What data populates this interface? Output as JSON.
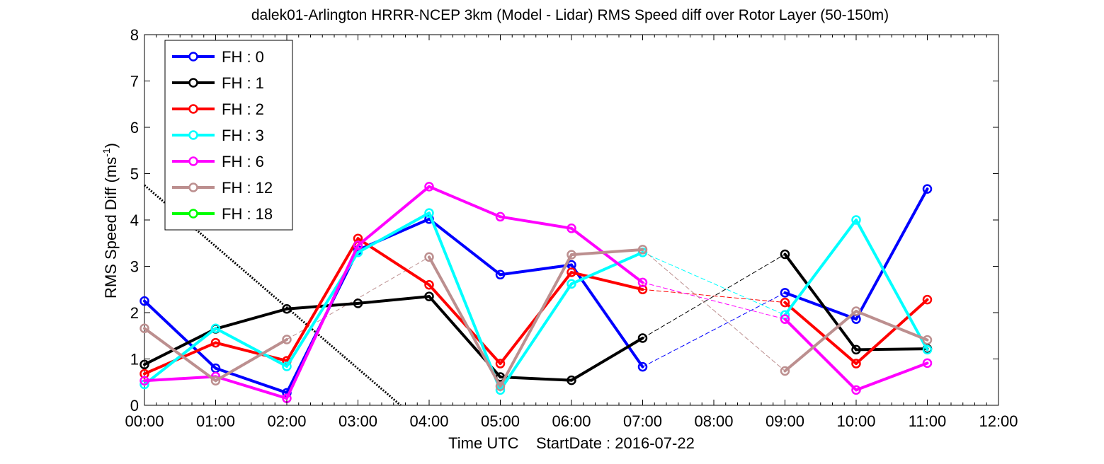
{
  "chart_data": {
    "type": "line",
    "title": "dalek01-Arlington HRRR-NCEP 3km (Model - Lidar) RMS Speed diff over Rotor Layer (50-150m)",
    "xlabel": "Time UTC    StartDate : 2016-07-22",
    "ylabel_main": "RMS Speed Diff (ms",
    "ylabel_sup": "-1",
    "ylabel_close": ")",
    "xlim": [
      0,
      12
    ],
    "ylim": [
      0,
      8
    ],
    "x_tick_values": [
      0,
      1,
      2,
      3,
      4,
      5,
      6,
      7,
      8,
      9,
      10,
      11,
      12
    ],
    "x_tick_labels": [
      "00:00",
      "01:00",
      "02:00",
      "03:00",
      "04:00",
      "05:00",
      "06:00",
      "07:00",
      "08:00",
      "09:00",
      "10:00",
      "11:00",
      "12:00"
    ],
    "y_tick_values": [
      0,
      1,
      2,
      3,
      4,
      5,
      6,
      7,
      8
    ],
    "y_tick_labels": [
      "0",
      "1",
      "2",
      "3",
      "4",
      "5",
      "6",
      "7",
      "8"
    ],
    "grid": false,
    "legend_position": "top-left",
    "gap_at_hour": 8,
    "series": [
      {
        "name": "FH : 0",
        "color": "#0000ff",
        "x": [
          0,
          1,
          2,
          3,
          4,
          5,
          6,
          7,
          9,
          10,
          11
        ],
        "y": [
          2.25,
          0.8,
          0.27,
          3.35,
          4.02,
          2.82,
          3.03,
          0.83,
          2.43,
          1.86,
          4.67
        ]
      },
      {
        "name": "FH : 1",
        "color": "#000000",
        "x": [
          0,
          1,
          2,
          3,
          4,
          5,
          6,
          7,
          9,
          10,
          11
        ],
        "y": [
          0.88,
          1.65,
          2.08,
          2.2,
          2.35,
          0.61,
          0.54,
          1.45,
          3.26,
          1.2,
          1.22
        ]
      },
      {
        "name": "FH : 2",
        "color": "#ff0000",
        "x": [
          0,
          1,
          2,
          3,
          4,
          5,
          6,
          7,
          9,
          10,
          11
        ],
        "y": [
          0.68,
          1.35,
          0.96,
          3.6,
          2.6,
          0.9,
          2.87,
          2.5,
          2.22,
          0.9,
          2.28
        ]
      },
      {
        "name": "FH : 3",
        "color": "#00ffff",
        "x": [
          0,
          1,
          2,
          3,
          4,
          5,
          6,
          7,
          9,
          10,
          11
        ],
        "y": [
          0.45,
          1.66,
          0.84,
          3.3,
          4.15,
          0.33,
          2.62,
          3.3,
          1.95,
          4.0,
          1.2
        ]
      },
      {
        "name": "FH : 6",
        "color": "#ff00ff",
        "x": [
          0,
          1,
          2,
          3,
          4,
          5,
          6,
          7,
          9,
          10,
          11
        ],
        "y": [
          0.53,
          0.62,
          0.15,
          3.45,
          4.72,
          4.07,
          3.82,
          2.65,
          1.86,
          0.33,
          0.91
        ]
      },
      {
        "name": "FH : 12",
        "color": "#bc8f8f",
        "x": [
          0,
          1,
          2,
          3,
          4,
          5,
          6,
          7,
          9,
          10,
          11
        ],
        "y": [
          1.66,
          0.53,
          1.42,
          null,
          3.2,
          0.41,
          3.25,
          3.36,
          0.74,
          2.03,
          1.41
        ]
      },
      {
        "name": "FH : 18",
        "color": "#00ff00",
        "x": [],
        "y": []
      }
    ],
    "dotted_trend": {
      "color": "#000000",
      "x": [
        0,
        3.6
      ],
      "y": [
        4.75,
        0
      ]
    }
  }
}
